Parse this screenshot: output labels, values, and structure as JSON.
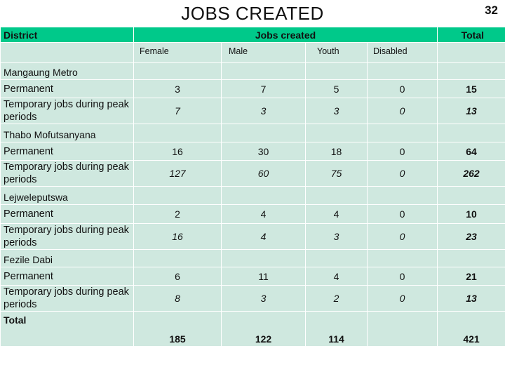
{
  "title": "JOBS CREATED",
  "page_number": "32",
  "header": {
    "district": "District",
    "jobs_created": "Jobs created",
    "total": "Total",
    "columns": [
      "Female",
      "Male",
      "Youth",
      "Disabled"
    ]
  },
  "districts": [
    {
      "name": "Mangaung Metro",
      "rows": [
        {
          "label": "Permanent",
          "female": "3",
          "male": "7",
          "youth": "5",
          "disabled": "0",
          "total": "15"
        },
        {
          "label": "Temporary jobs during peak periods",
          "female": "7",
          "male": "3",
          "youth": "3",
          "disabled": "0",
          "total": "13"
        }
      ]
    },
    {
      "name": "Thabo Mofutsanyana",
      "rows": [
        {
          "label": "Permanent",
          "female": "16",
          "male": "30",
          "youth": "18",
          "disabled": "0",
          "total": "64"
        },
        {
          "label": "Temporary jobs during peak periods",
          "female": "127",
          "male": "60",
          "youth": "75",
          "disabled": "0",
          "total": "262"
        }
      ]
    },
    {
      "name": "Lejweleputswa",
      "rows": [
        {
          "label": "Permanent",
          "female": "2",
          "male": "4",
          "youth": "4",
          "disabled": "0",
          "total": "10"
        },
        {
          "label": "Temporary jobs during peak periods",
          "female": "16",
          "male": "4",
          "youth": "3",
          "disabled": "0",
          "total": "23"
        }
      ]
    },
    {
      "name": "Fezile Dabi",
      "rows": [
        {
          "label": "Permanent",
          "female": "6",
          "male": "11",
          "youth": "4",
          "disabled": "0",
          "total": "21"
        },
        {
          "label": "Temporary jobs during peak periods",
          "female": "8",
          "male": "3",
          "youth": "2",
          "disabled": "0",
          "total": "13"
        }
      ]
    }
  ],
  "totals": {
    "label": "Total",
    "female": "185",
    "male": "122",
    "youth": "114",
    "disabled": "",
    "total": "421"
  },
  "colors": {
    "header_green": "#00c98a",
    "cell_bg": "#cfe8df"
  }
}
